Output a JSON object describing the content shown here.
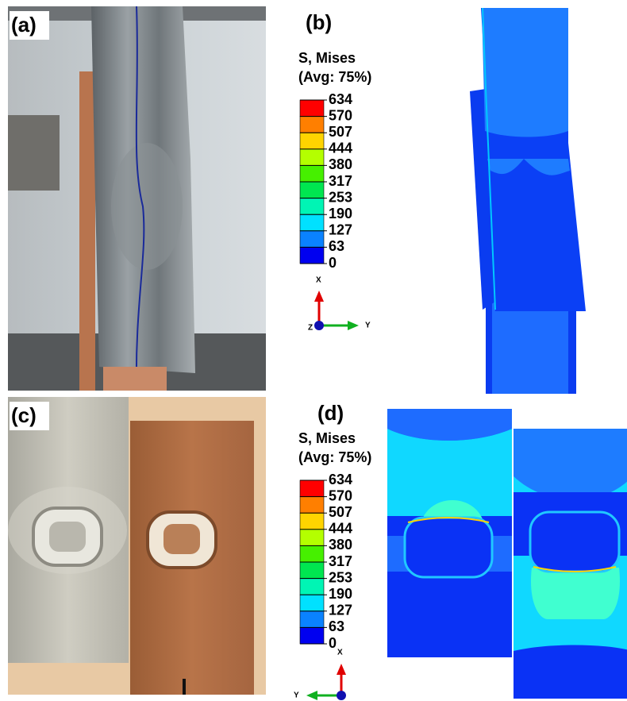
{
  "panels": {
    "a": {
      "label": "(a)"
    },
    "b": {
      "label": "(b)",
      "legend": {
        "title": "S, Mises",
        "subtitle": "(Avg: 75%)",
        "values": [
          634,
          570,
          507,
          444,
          380,
          317,
          253,
          190,
          127,
          63,
          0
        ],
        "colors": [
          "#ff0000",
          "#ff7f00",
          "#ffd400",
          "#b4ff00",
          "#46f000",
          "#00e650",
          "#00f5b4",
          "#00e1ff",
          "#0a82ff",
          "#0000f0"
        ]
      },
      "axes": {
        "x": "X",
        "y": "Y",
        "z": "Z"
      }
    },
    "c": {
      "label": "(c)"
    },
    "d": {
      "label": "(d)",
      "legend": {
        "title": "S, Mises",
        "subtitle": "(Avg: 75%)",
        "values": [
          634,
          570,
          507,
          444,
          380,
          317,
          253,
          190,
          127,
          63,
          0
        ],
        "colors": [
          "#ff0000",
          "#ff7f00",
          "#ffd400",
          "#b4ff00",
          "#46f000",
          "#00e650",
          "#00f5b4",
          "#00e1ff",
          "#0a82ff",
          "#0000f0"
        ]
      },
      "axes": {
        "x": "X",
        "y": "Y"
      }
    }
  }
}
